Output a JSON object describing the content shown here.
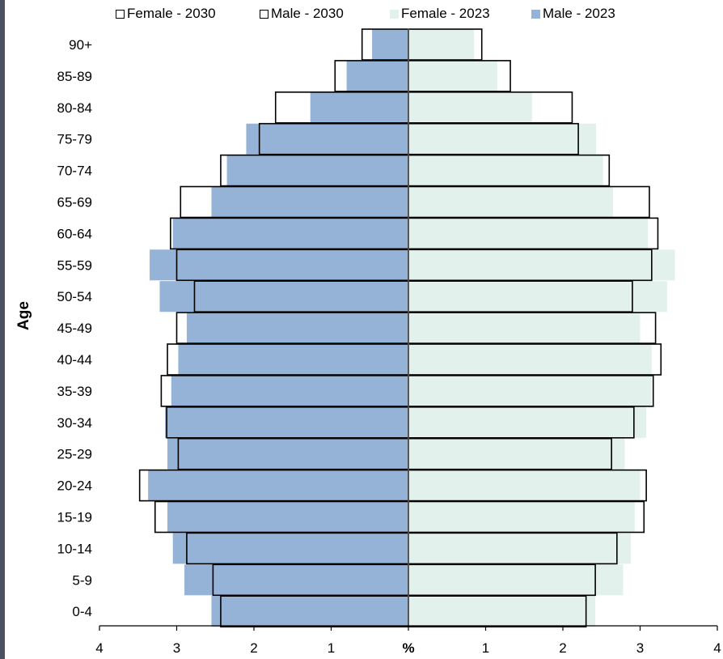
{
  "chart_data": {
    "type": "bar",
    "orientation": "horizontal-population-pyramid",
    "categories": [
      "0-4",
      "5-9",
      "10-14",
      "15-19",
      "20-24",
      "25-29",
      "30-34",
      "35-39",
      "40-44",
      "45-49",
      "50-54",
      "55-59",
      "60-64",
      "65-69",
      "70-74",
      "75-79",
      "80-84",
      "85-89",
      "90+"
    ],
    "series": [
      {
        "name": "Male - 2023",
        "side": "left",
        "style": "filled",
        "color": "#95b2d7",
        "values": [
          2.55,
          2.9,
          3.05,
          3.12,
          3.37,
          3.12,
          3.15,
          3.07,
          2.98,
          2.87,
          3.22,
          3.35,
          3.05,
          2.55,
          2.35,
          2.1,
          1.27,
          0.8,
          0.47
        ]
      },
      {
        "name": "Female - 2023",
        "side": "right",
        "style": "filled",
        "color": "#e3f1ec",
        "values": [
          2.42,
          2.78,
          2.88,
          2.93,
          3.0,
          2.8,
          3.08,
          3.15,
          3.15,
          3.0,
          3.35,
          3.45,
          3.1,
          2.65,
          2.52,
          2.43,
          1.6,
          1.15,
          0.85
        ]
      },
      {
        "name": "Male - 2030",
        "side": "left",
        "style": "outline",
        "color": "#000000",
        "values": [
          2.43,
          2.53,
          2.87,
          3.28,
          3.48,
          2.98,
          3.13,
          3.2,
          3.12,
          3.0,
          2.77,
          3.0,
          3.08,
          2.95,
          2.43,
          1.93,
          1.72,
          0.95,
          0.6
        ]
      },
      {
        "name": "Female - 2030",
        "side": "right",
        "style": "outline",
        "color": "#000000",
        "values": [
          2.3,
          2.42,
          2.7,
          3.05,
          3.08,
          2.63,
          2.92,
          3.17,
          3.27,
          3.2,
          2.9,
          3.15,
          3.23,
          3.12,
          2.6,
          2.2,
          2.12,
          1.32,
          0.95
        ]
      }
    ],
    "legend_order": [
      "Female - 2030",
      "Male - 2030",
      "Female - 2023",
      "Male - 2023"
    ],
    "legend_position": "top",
    "xlabel": "%",
    "ylabel": "Age",
    "xlim": [
      -4,
      4
    ],
    "xtick_labels": [
      "4",
      "3",
      "2",
      "1",
      "%",
      "1",
      "2",
      "3",
      "4"
    ],
    "grid": false
  }
}
